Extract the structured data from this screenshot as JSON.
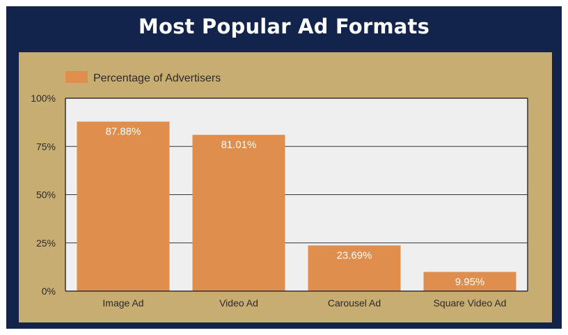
{
  "title": "Most Popular Ad Formats",
  "colors": {
    "frame": "#13244c",
    "panel": "#c8ad72",
    "plot_bg": "#efefef",
    "bar": "#e08e4d",
    "grid": "#333333"
  },
  "chart_data": {
    "type": "bar",
    "title": "Most Popular Ad Formats",
    "categories": [
      "Image Ad",
      "Video Ad",
      "Carousel Ad",
      "Square Video Ad"
    ],
    "series": [
      {
        "name": "Percentage of Advertisers",
        "values": [
          87.88,
          81.01,
          23.69,
          9.95
        ],
        "labels": [
          "87.88%",
          "81.01%",
          "23.69%",
          "9.95%"
        ]
      }
    ],
    "ylim": [
      0,
      100
    ],
    "yticks": [
      0,
      25,
      50,
      75,
      100
    ],
    "ytick_labels": [
      "0%",
      "25%",
      "50%",
      "75%",
      "100%"
    ],
    "xlabel": "",
    "ylabel": "",
    "grid": true,
    "legend_position": "top-left"
  }
}
